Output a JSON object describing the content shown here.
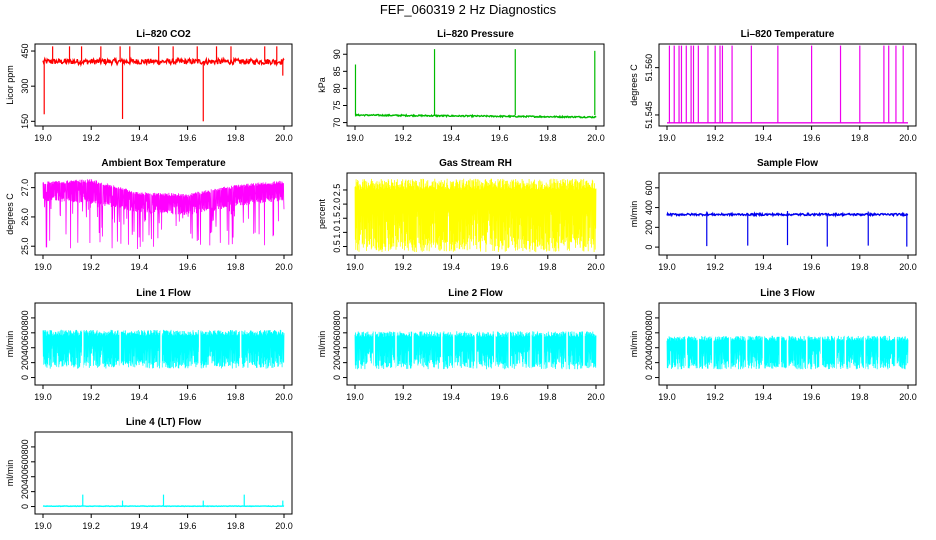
{
  "figure": {
    "title": "FEF_060319  2 Hz Diagnostics"
  },
  "chart_data": [
    {
      "type": "line",
      "title": "Li–820 CO2",
      "ylabel": "Licor ppm",
      "xlim": [
        19.0,
        20.0
      ],
      "ylim": [
        130,
        480
      ],
      "yticks": [
        150,
        300,
        450
      ],
      "color": "#ff0000",
      "generated": {
        "base": 405,
        "noise": 12,
        "spikesUp": [
          [
            19.04,
            470
          ],
          [
            19.11,
            470
          ],
          [
            19.16,
            470
          ],
          [
            19.24,
            470
          ],
          [
            19.32,
            470
          ],
          [
            19.36,
            470
          ],
          [
            19.48,
            470
          ],
          [
            19.54,
            470
          ],
          [
            19.64,
            470
          ],
          [
            19.72,
            470
          ],
          [
            19.78,
            470
          ],
          [
            19.92,
            470
          ],
          [
            19.97,
            470
          ]
        ],
        "spikesDown": [
          [
            19.005,
            180
          ],
          [
            19.33,
            160
          ],
          [
            19.665,
            150
          ],
          [
            19.995,
            345
          ]
        ]
      },
      "series": [
        {
          "name": "CO2",
          "values_note": "2 Hz trace, ~400 ppm with spikes"
        }
      ]
    },
    {
      "type": "line",
      "title": "Li–820 Pressure",
      "ylabel": "kPa",
      "xlim": [
        19.0,
        20.0
      ],
      "ylim": [
        69,
        93
      ],
      "yticks": [
        70,
        75,
        80,
        85,
        90
      ],
      "color": "#00bb00",
      "generated": {
        "base": 72.2,
        "endBase": 71.6,
        "noise": 0.2,
        "spikesUp": [
          [
            19.002,
            87
          ],
          [
            19.33,
            91.5
          ],
          [
            19.665,
            91.5
          ],
          [
            19.995,
            91
          ]
        ],
        "spikesDown": []
      },
      "series": [
        {
          "name": "Pressure",
          "values_note": "~72 kPa baseline"
        }
      ]
    },
    {
      "type": "line",
      "title": "Li–820 Temperature",
      "ylabel": "degrees C",
      "xlim": [
        19.0,
        20.0
      ],
      "ylim": [
        51.5415,
        51.5675
      ],
      "yticks": [
        51.545,
        51.56
      ],
      "ytickLabels": [
        "51.545",
        "51.560"
      ],
      "color": "#ee00ee",
      "generated": {
        "base": 51.5425,
        "noise": 0,
        "spikesUp": [
          [
            19.01,
            51.567
          ],
          [
            19.03,
            51.567
          ],
          [
            19.05,
            51.567
          ],
          [
            19.06,
            51.567
          ],
          [
            19.08,
            51.567
          ],
          [
            19.1,
            51.567
          ],
          [
            19.11,
            51.567
          ],
          [
            19.13,
            51.567
          ],
          [
            19.17,
            51.567
          ],
          [
            19.2,
            51.567
          ],
          [
            19.22,
            51.567
          ],
          [
            19.23,
            51.567
          ],
          [
            19.27,
            51.567
          ],
          [
            19.35,
            51.567
          ],
          [
            19.46,
            51.567
          ],
          [
            19.6,
            51.567
          ],
          [
            19.72,
            51.567
          ],
          [
            19.8,
            51.567
          ],
          [
            19.9,
            51.567
          ],
          [
            19.92,
            51.567
          ],
          [
            19.95,
            51.567
          ],
          [
            19.98,
            51.567
          ]
        ],
        "spikesDown": []
      },
      "series": [
        {
          "name": "Temperature",
          "values_note": "flat at 51.5425 with jumps"
        }
      ]
    },
    {
      "type": "line",
      "title": "Ambient Box Temperature",
      "ylabel": "degrees C",
      "xlim": [
        19.0,
        20.0
      ],
      "ylim": [
        24.7,
        27.5
      ],
      "yticks": [
        25.0,
        26.0,
        27.0
      ],
      "ytickLabels": [
        "25.0",
        "26.0",
        "27.0"
      ],
      "color": "#ff00ff",
      "generated": {
        "band": [
          [
            19.0,
            26.55,
            27.2
          ],
          [
            19.2,
            26.45,
            27.3
          ],
          [
            19.4,
            26.15,
            26.85
          ],
          [
            19.6,
            26.05,
            26.8
          ],
          [
            19.8,
            26.35,
            27.1
          ],
          [
            20.0,
            26.55,
            27.25
          ]
        ],
        "dips": 90,
        "dipMin": 24.9
      },
      "series": [
        {
          "name": "Ambient",
          "values_note": "26-27.3 C band with dips"
        }
      ]
    },
    {
      "type": "line",
      "title": "Gas Stream RH",
      "ylabel": "percent",
      "xlim": [
        19.0,
        20.0
      ],
      "ylim": [
        0.2,
        3.1
      ],
      "yticks": [
        0.5,
        1.0,
        1.5,
        2.0,
        2.5
      ],
      "ytickLabels": [
        "0.5",
        "1.0",
        "1.5",
        "2.0",
        "2.5"
      ],
      "color": "#ffff00",
      "generated": {
        "band": [
          [
            19.0,
            0.3,
            2.9
          ],
          [
            20.0,
            0.3,
            2.9
          ]
        ],
        "dips": 0,
        "dipMin": 0.3
      },
      "series": [
        {
          "name": "RH",
          "values_note": "dense 0.3-2.9 %"
        }
      ]
    },
    {
      "type": "line",
      "title": "Sample Flow",
      "ylabel": "ml/min",
      "xlim": [
        19.0,
        20.0
      ],
      "ylim": [
        -80,
        750
      ],
      "yticks": [
        0,
        200,
        400,
        600
      ],
      "color": "#0000ee",
      "generated": {
        "base": 330,
        "noise": 10,
        "spikesUp": [
          [
            19.165,
            360
          ],
          [
            19.5,
            365
          ],
          [
            19.835,
            360
          ]
        ],
        "spikesDown": [
          [
            19.165,
            10
          ],
          [
            19.335,
            15
          ],
          [
            19.5,
            20
          ],
          [
            19.665,
            5
          ],
          [
            19.835,
            15
          ],
          [
            19.995,
            5
          ]
        ]
      },
      "series": [
        {
          "name": "Sample",
          "values_note": "~330 ml/min with drops"
        }
      ]
    },
    {
      "type": "line",
      "title": "Line 1 Flow",
      "ylabel": "ml/min",
      "xlim": [
        19.0,
        20.0
      ],
      "ylim": [
        -100,
        1000
      ],
      "yticks": [
        0,
        200,
        400,
        600,
        800
      ],
      "color": "#00ffff",
      "generated": {
        "band": [
          [
            19.0,
            120,
            640
          ],
          [
            20.0,
            120,
            640
          ]
        ],
        "dips": 0,
        "dipMin": 100,
        "gaps": [
          19.165,
          19.32,
          19.49,
          19.65,
          19.82
        ]
      },
      "series": [
        {
          "name": "Line 1",
          "values_note": "120-640 ml/min"
        }
      ]
    },
    {
      "type": "line",
      "title": "Line 2 Flow",
      "ylabel": "ml/min",
      "xlim": [
        19.0,
        20.0
      ],
      "ylim": [
        -100,
        1000
      ],
      "yticks": [
        0,
        200,
        400,
        600,
        800
      ],
      "color": "#00ffff",
      "generated": {
        "band": [
          [
            19.0,
            110,
            620
          ],
          [
            20.0,
            110,
            620
          ]
        ],
        "dips": 0,
        "dipMin": 100,
        "gaps": [
          19.08,
          19.17,
          19.24,
          19.36,
          19.41,
          19.5,
          19.58,
          19.64,
          19.73,
          19.78,
          19.88,
          19.95
        ]
      },
      "series": [
        {
          "name": "Line 2",
          "values_note": "110-620 ml/min"
        }
      ]
    },
    {
      "type": "line",
      "title": "Line 3 Flow",
      "ylabel": "ml/min",
      "xlim": [
        19.0,
        20.0
      ],
      "ylim": [
        -100,
        1000
      ],
      "yticks": [
        0,
        200,
        400,
        600,
        800
      ],
      "color": "#00ffff",
      "generated": {
        "band": [
          [
            19.0,
            110,
            560
          ],
          [
            20.0,
            110,
            560
          ]
        ],
        "dips": 0,
        "dipMin": 100,
        "gaps": [
          19.08,
          19.13,
          19.19,
          19.26,
          19.33,
          19.4,
          19.47,
          19.5,
          19.58,
          19.64,
          19.7,
          19.74,
          19.82,
          19.88,
          19.95
        ]
      },
      "series": [
        {
          "name": "Line 3",
          "values_note": "110-560 ml/min"
        }
      ]
    },
    {
      "type": "line",
      "title": "Line 4 (LT) Flow",
      "ylabel": "ml/min",
      "xlim": [
        19.0,
        20.0
      ],
      "ylim": [
        -100,
        1000
      ],
      "yticks": [
        0,
        200,
        400,
        600,
        800
      ],
      "color": "#00ffff",
      "generated": {
        "base": 5,
        "noise": 3,
        "spikesUp": [
          [
            19.165,
            160
          ],
          [
            19.33,
            80
          ],
          [
            19.5,
            160
          ],
          [
            19.665,
            80
          ],
          [
            19.835,
            160
          ],
          [
            19.995,
            80
          ]
        ],
        "spikesDown": []
      },
      "series": [
        {
          "name": "Line 4",
          "values_note": "~0 ml/min with small spikes"
        }
      ]
    }
  ],
  "xticks": [
    19.0,
    19.2,
    19.4,
    19.6,
    19.8,
    20.0
  ],
  "xtickLabels": [
    "19.0",
    "19.2",
    "19.4",
    "19.6",
    "19.8",
    "20.0"
  ]
}
